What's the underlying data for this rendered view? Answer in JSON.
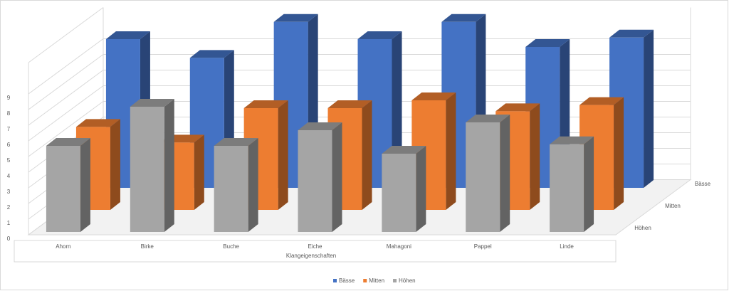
{
  "chart_data": {
    "type": "bar3d",
    "x_label": "Klangeigenschaften",
    "categories": [
      "Ahorn",
      "Birke",
      "Buche",
      "Eiche",
      "Mahagoni",
      "Pappel",
      "Linde"
    ],
    "series": [
      {
        "name": "Bässe",
        "color": "#4472c4",
        "values": [
          9.5,
          8.3,
          10.6,
          9.5,
          10.6,
          9,
          9.6
        ]
      },
      {
        "name": "Mitten",
        "color": "#ed7d31",
        "values": [
          5.3,
          4.3,
          6.5,
          6.5,
          7,
          6.3,
          6.7
        ]
      },
      {
        "name": "Höhen",
        "color": "#a5a5a5",
        "values": [
          5.5,
          8,
          5.5,
          6.5,
          5,
          7,
          5.6
        ]
      }
    ],
    "ylim": [
      0,
      11
    ],
    "yticks": [
      0,
      1,
      2,
      3,
      4,
      5,
      6,
      7,
      8,
      9
    ],
    "grid": true,
    "legend": "bottom"
  }
}
